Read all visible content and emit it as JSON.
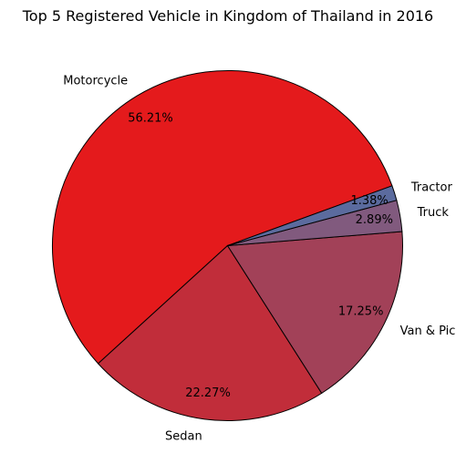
{
  "chart_data": {
    "type": "pie",
    "title": "Top 5 Registered Vehicle in Kingdom of Thailand in 2016",
    "categories": [
      "Motorcycle",
      "Sedan",
      "Van & Pick Up",
      "Truck",
      "Tractor"
    ],
    "values": [
      56.21,
      22.27,
      17.25,
      2.89,
      1.38
    ],
    "value_labels": [
      "56.21%",
      "22.27%",
      "17.25%",
      "2.89%",
      "1.38%"
    ],
    "colors": [
      "#e41a1c",
      "#c12d3a",
      "#a24158",
      "#815a7e",
      "#5b6b9e"
    ],
    "start_angle_deg": 20,
    "direction": "counterclockwise",
    "legend": "none"
  }
}
